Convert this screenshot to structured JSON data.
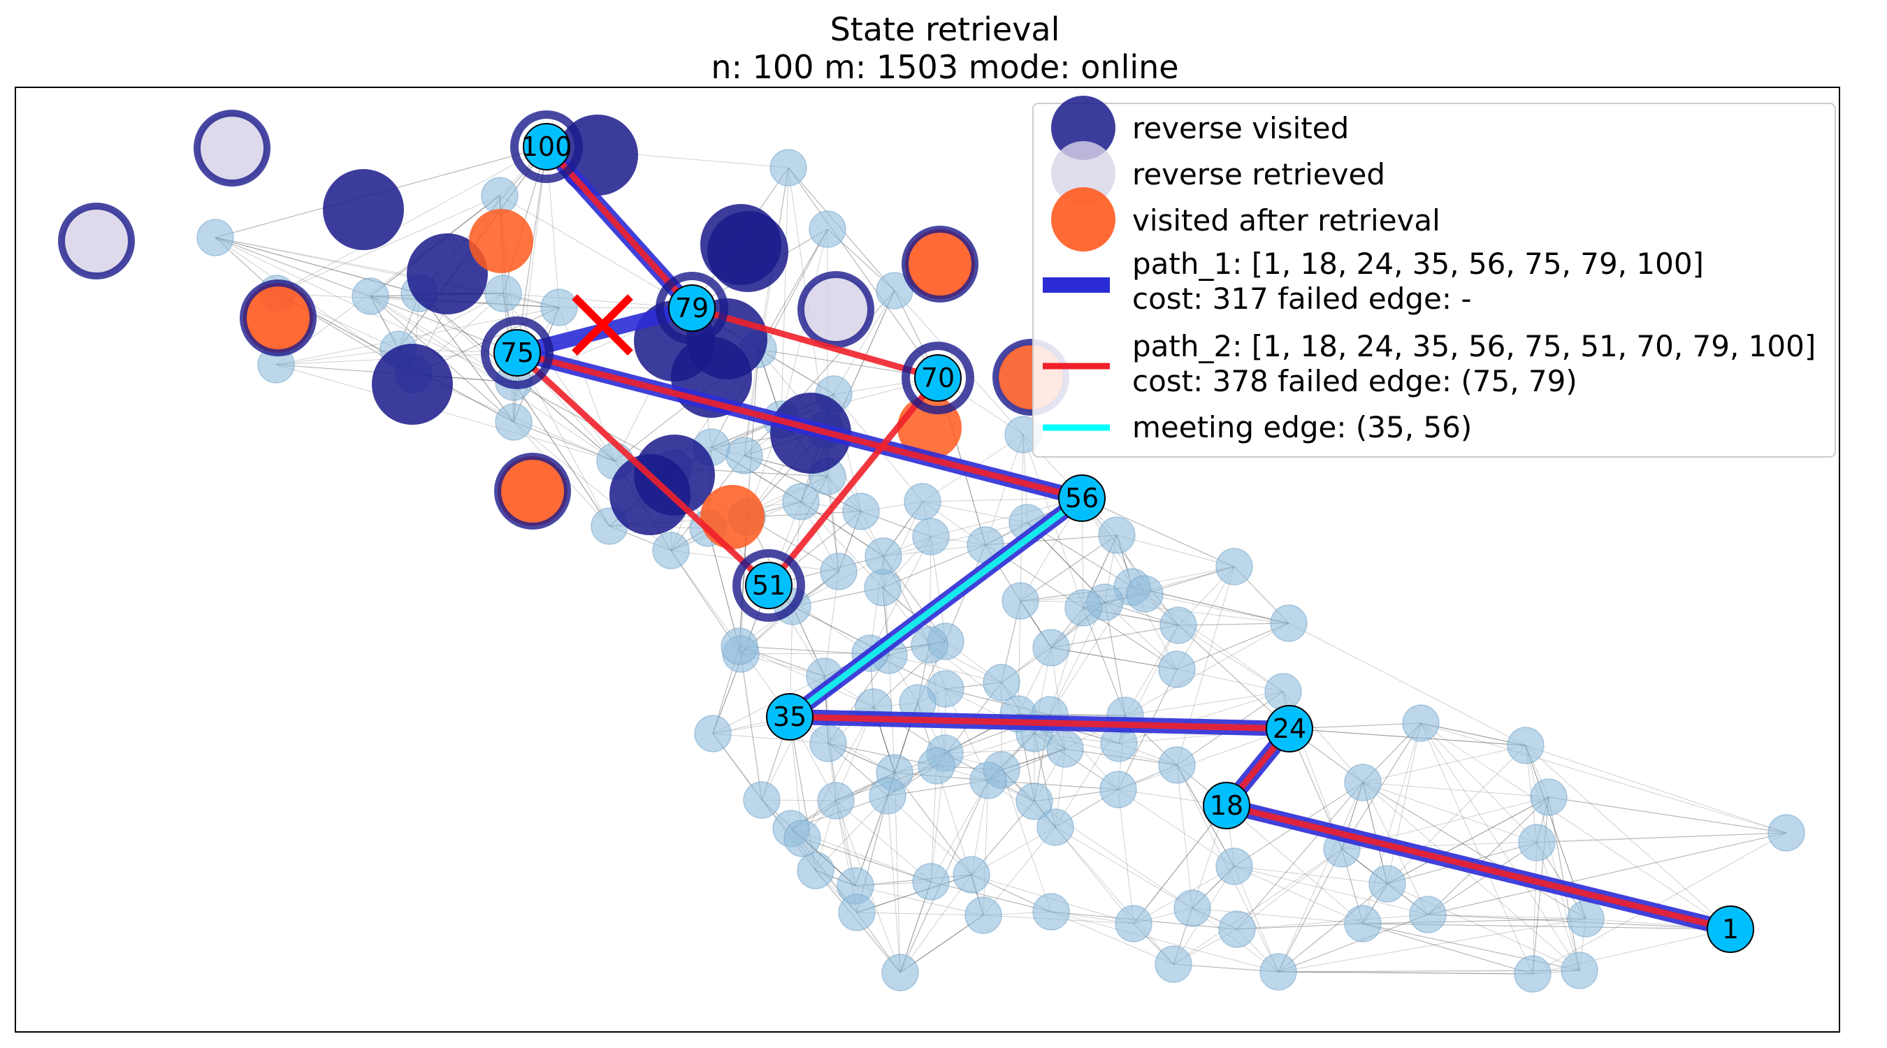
{
  "title": {
    "line1": "State retrieval",
    "line2": "n: 100   m: 1503   mode: online"
  },
  "colors": {
    "reverse_visited": "#1a1a8c",
    "reverse_retrieved": "#d8d4e8",
    "visited_after_retrieval": "#ff5a1f",
    "path_1": "#2b2bd6",
    "path_2": "#f0202a",
    "meeting_edge": "#00ffff",
    "background_node": "#8fbcdc",
    "labeled_node": "#00bfff",
    "failed_marker": "#ff0000"
  },
  "legend": [
    {
      "kind": "reverse_visited",
      "text": "reverse visited"
    },
    {
      "kind": "reverse_retrieved",
      "text": "reverse retrieved"
    },
    {
      "kind": "visited_after_retrieval",
      "text": "visited after retrieval"
    },
    {
      "kind": "path_1",
      "line1": "path_1: [1, 18, 24, 35, 56, 75, 79, 100]",
      "line2": "cost: 317    failed edge: -"
    },
    {
      "kind": "path_2",
      "line1": "path_2: [1, 18, 24, 35, 56, 75, 51, 70, 79, 100]",
      "line2": "cost: 378    failed edge: (75, 79)"
    },
    {
      "kind": "meeting_edge",
      "text": "meeting edge: (35, 56)"
    }
  ],
  "chart_data": {
    "type": "graph",
    "n": 100,
    "m": 1503,
    "mode": "online",
    "labeled_nodes": [
      "1",
      "18",
      "24",
      "35",
      "56",
      "75",
      "79",
      "100",
      "51",
      "70"
    ],
    "path_1": {
      "nodes": [
        1,
        18,
        24,
        35,
        56,
        75,
        79,
        100
      ],
      "cost": 317,
      "failed_edge": "-"
    },
    "path_2": {
      "nodes": [
        1,
        18,
        24,
        35,
        56,
        75,
        51,
        70,
        79,
        100
      ],
      "cost": 378,
      "failed_edge": [
        75,
        79
      ]
    },
    "meeting_edge": [
      35,
      56
    ],
    "legend_placement": "top-right"
  }
}
